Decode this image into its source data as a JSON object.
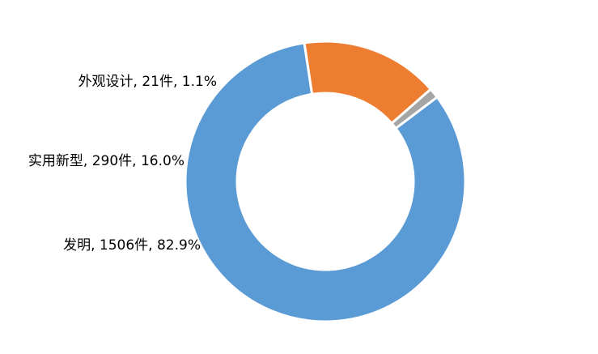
{
  "chart_data": {
    "type": "pie",
    "title": "",
    "donut": true,
    "start_angle_deg": -37,
    "series": [
      {
        "slices": [
          {
            "label": "发明",
            "count": 1506,
            "unit": "件",
            "percent": 82.9,
            "color": "#5B9BD5",
            "text": "发明, 1506件, 82.9%"
          },
          {
            "label": "实用新型",
            "count": 290,
            "unit": "件",
            "percent": 16.0,
            "color": "#ED7D31",
            "text": "实用新型, 290件, 16.0%"
          },
          {
            "label": "外观设计",
            "count": 21,
            "unit": "件",
            "percent": 1.1,
            "color": "#A5A5A5",
            "text": "外观设计, 21件, 1.1%"
          }
        ]
      }
    ],
    "legend": "none"
  }
}
